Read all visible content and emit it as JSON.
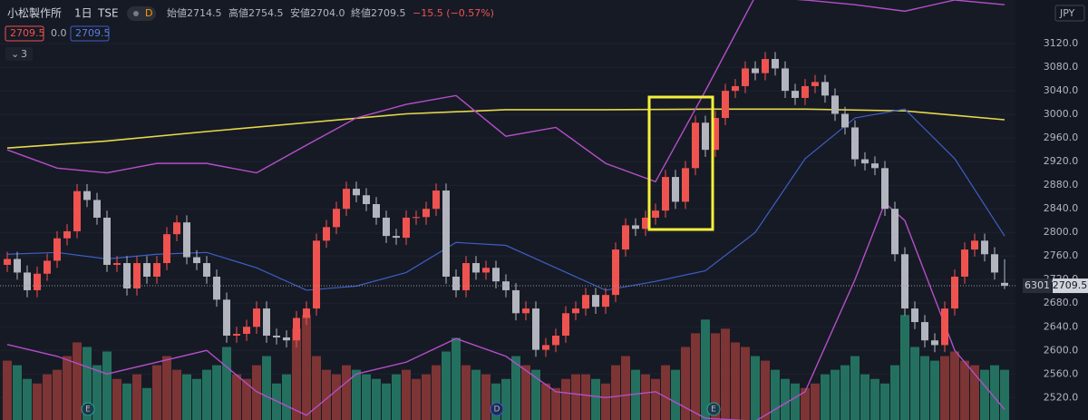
{
  "header": {
    "symbol": "小松製作所",
    "interval": "1日",
    "exchange": "TSE",
    "badge": "D",
    "open": "始値2714.5",
    "high": "高値2754.5",
    "low": "安値2704.0",
    "close": "終値2709.5",
    "change": "−15.5 (−0.57%)",
    "ind_a": "2709.5",
    "ind_b": "0.0",
    "ind_c": "2709.5",
    "collapse": "3",
    "currency": "JPY",
    "symbol_code": "6301",
    "events": [
      "E",
      "D",
      "E"
    ]
  },
  "chart_data": {
    "type": "candlestick",
    "ylim": [
      2482,
      3194
    ],
    "yticks": [
      {
        "value": 2520,
        "label": "2520.0"
      },
      {
        "value": 2560,
        "label": "2560.0"
      },
      {
        "value": 2600,
        "label": "2600.0"
      },
      {
        "value": 2640,
        "label": "2640.0"
      },
      {
        "value": 2680,
        "label": "2680.0"
      },
      {
        "value": 2720,
        "label": "2720.0"
      },
      {
        "value": 2760,
        "label": "2760.0"
      },
      {
        "value": 2800,
        "label": "2800.0"
      },
      {
        "value": 2840,
        "label": "2840.0"
      },
      {
        "value": 2880,
        "label": "2880.0"
      },
      {
        "value": 2920,
        "label": "2920.0"
      },
      {
        "value": 2960,
        "label": "2960.0"
      },
      {
        "value": 3000,
        "label": "3000.0"
      },
      {
        "value": 3040,
        "label": "3040.0"
      },
      {
        "value": 3080,
        "label": "3080.0"
      },
      {
        "value": 3120,
        "label": "3120.0"
      }
    ],
    "up_color": "#ef5350",
    "down_color": "#b2b5be",
    "vol_up_color": "#7d3434",
    "vol_down_color": "#24705f",
    "candles": [
      [
        2745,
        2767,
        2733,
        2755
      ],
      [
        2755,
        2767,
        2720,
        2732
      ],
      [
        2732,
        2744,
        2690,
        2702
      ],
      [
        2702,
        2742,
        2690,
        2730
      ],
      [
        2730,
        2764,
        2718,
        2752
      ],
      [
        2752,
        2802,
        2740,
        2790
      ],
      [
        2790,
        2814,
        2778,
        2802
      ],
      [
        2802,
        2882,
        2790,
        2870
      ],
      [
        2870,
        2882,
        2843,
        2855
      ],
      [
        2855,
        2867,
        2813,
        2825
      ],
      [
        2825,
        2837,
        2733,
        2745
      ],
      [
        2745,
        2760,
        2733,
        2748
      ],
      [
        2748,
        2760,
        2693,
        2705
      ],
      [
        2705,
        2760,
        2693,
        2748
      ],
      [
        2748,
        2760,
        2713,
        2725
      ],
      [
        2725,
        2760,
        2713,
        2748
      ],
      [
        2748,
        2809,
        2736,
        2797
      ],
      [
        2797,
        2829,
        2785,
        2817
      ],
      [
        2817,
        2829,
        2746,
        2758
      ],
      [
        2758,
        2770,
        2736,
        2748
      ],
      [
        2748,
        2760,
        2713,
        2725
      ],
      [
        2725,
        2737,
        2674,
        2686
      ],
      [
        2686,
        2698,
        2613,
        2625
      ],
      [
        2625,
        2640,
        2613,
        2628
      ],
      [
        2628,
        2652,
        2616,
        2640
      ],
      [
        2640,
        2683,
        2628,
        2671
      ],
      [
        2671,
        2683,
        2613,
        2625
      ],
      [
        2625,
        2637,
        2610,
        2622
      ],
      [
        2622,
        2634,
        2605,
        2617
      ],
      [
        2617,
        2667,
        2605,
        2655
      ],
      [
        2655,
        2683,
        2643,
        2671
      ],
      [
        2671,
        2798,
        2659,
        2786
      ],
      [
        2786,
        2821,
        2774,
        2809
      ],
      [
        2809,
        2852,
        2797,
        2840
      ],
      [
        2840,
        2886,
        2828,
        2874
      ],
      [
        2874,
        2886,
        2851,
        2863
      ],
      [
        2863,
        2875,
        2836,
        2848
      ],
      [
        2848,
        2860,
        2813,
        2825
      ],
      [
        2825,
        2837,
        2782,
        2794
      ],
      [
        2794,
        2806,
        2779,
        2791
      ],
      [
        2791,
        2837,
        2779,
        2825
      ],
      [
        2825,
        2837,
        2813,
        2826
      ],
      [
        2826,
        2852,
        2813,
        2840
      ],
      [
        2840,
        2883,
        2828,
        2871
      ],
      [
        2871,
        2883,
        2713,
        2725
      ],
      [
        2725,
        2737,
        2690,
        2702
      ],
      [
        2702,
        2760,
        2690,
        2748
      ],
      [
        2748,
        2760,
        2720,
        2732
      ],
      [
        2732,
        2752,
        2720,
        2740
      ],
      [
        2740,
        2752,
        2705,
        2717
      ],
      [
        2717,
        2729,
        2690,
        2702
      ],
      [
        2702,
        2714,
        2651,
        2663
      ],
      [
        2663,
        2683,
        2651,
        2671
      ],
      [
        2671,
        2683,
        2589,
        2601
      ],
      [
        2601,
        2621,
        2589,
        2609
      ],
      [
        2609,
        2637,
        2597,
        2625
      ],
      [
        2625,
        2675,
        2613,
        2663
      ],
      [
        2663,
        2683,
        2651,
        2671
      ],
      [
        2671,
        2706,
        2659,
        2694
      ],
      [
        2694,
        2706,
        2662,
        2674
      ],
      [
        2674,
        2706,
        2662,
        2694
      ],
      [
        2694,
        2783,
        2682,
        2771
      ],
      [
        2771,
        2824,
        2759,
        2812
      ],
      [
        2812,
        2824,
        2794,
        2806
      ],
      [
        2806,
        2837,
        2794,
        2825
      ],
      [
        2825,
        2849,
        2813,
        2837
      ],
      [
        2837,
        2906,
        2825,
        2894
      ],
      [
        2894,
        2906,
        2840,
        2852
      ],
      [
        2852,
        2921,
        2840,
        2909
      ],
      [
        2909,
        2998,
        2897,
        2986
      ],
      [
        2986,
        2998,
        2928,
        2940
      ],
      [
        2940,
        3006,
        2928,
        2994
      ],
      [
        2994,
        3052,
        2982,
        3040
      ],
      [
        3040,
        3060,
        3028,
        3048
      ],
      [
        3048,
        3090,
        3036,
        3078
      ],
      [
        3078,
        3090,
        3058,
        3070
      ],
      [
        3070,
        3106,
        3058,
        3094
      ],
      [
        3094,
        3106,
        3066,
        3078
      ],
      [
        3078,
        3090,
        3028,
        3040
      ],
      [
        3040,
        3052,
        3016,
        3028
      ],
      [
        3028,
        3060,
        3016,
        3048
      ],
      [
        3048,
        3067,
        3036,
        3055
      ],
      [
        3055,
        3067,
        3020,
        3032
      ],
      [
        3032,
        3044,
        2989,
        3001
      ],
      [
        3001,
        3013,
        2966,
        2978
      ],
      [
        2978,
        2990,
        2912,
        2924
      ],
      [
        2924,
        2936,
        2905,
        2917
      ],
      [
        2917,
        2929,
        2897,
        2909
      ],
      [
        2909,
        2921,
        2828,
        2840
      ],
      [
        2840,
        2852,
        2751,
        2763
      ],
      [
        2763,
        2775,
        2659,
        2671
      ],
      [
        2671,
        2683,
        2636,
        2648
      ],
      [
        2648,
        2660,
        2605,
        2617
      ],
      [
        2617,
        2629,
        2597,
        2609
      ],
      [
        2609,
        2683,
        2597,
        2671
      ],
      [
        2671,
        2737,
        2659,
        2725
      ],
      [
        2725,
        2783,
        2713,
        2771
      ],
      [
        2771,
        2798,
        2759,
        2786
      ],
      [
        2786,
        2798,
        2751,
        2763
      ],
      [
        2763,
        2775,
        2720,
        2732
      ],
      [
        2714.5,
        2754.5,
        2704,
        2709.5
      ]
    ],
    "volume_lim": [
      0,
      460
    ],
    "volume": [
      65,
      60,
      45,
      40,
      50,
      55,
      70,
      85,
      80,
      60,
      75,
      45,
      40,
      50,
      35,
      60,
      70,
      55,
      50,
      45,
      55,
      60,
      80,
      50,
      45,
      60,
      70,
      40,
      50,
      100,
      115,
      70,
      55,
      50,
      60,
      55,
      50,
      45,
      40,
      50,
      55,
      45,
      50,
      60,
      75,
      90,
      60,
      55,
      50,
      40,
      45,
      70,
      60,
      55,
      40,
      35,
      45,
      50,
      50,
      45,
      40,
      60,
      70,
      55,
      50,
      45,
      60,
      55,
      80,
      95,
      110,
      95,
      100,
      85,
      80,
      70,
      65,
      55,
      45,
      40,
      35,
      40,
      50,
      55,
      60,
      70,
      50,
      45,
      40,
      60,
      115,
      80,
      70,
      65,
      70,
      75,
      65,
      60,
      55,
      60,
      55
    ],
    "lines": [
      {
        "color": "#e6d84a",
        "width": 1.6,
        "index": [
          0,
          10,
          20,
          30,
          40,
          50,
          60,
          70,
          80,
          90,
          100
        ],
        "values": [
          2943,
          2955,
          2971,
          2986,
          3001,
          3008,
          3008,
          3009,
          3009,
          3006,
          2991
        ]
      },
      {
        "color": "#3d5fc4",
        "width": 1.2,
        "index": [
          0,
          5,
          10,
          15,
          20,
          25,
          30,
          35,
          40,
          45,
          50,
          55,
          60,
          65,
          70,
          75,
          80,
          85,
          90,
          95,
          100
        ],
        "values": [
          2763,
          2766,
          2755,
          2763,
          2766,
          2740,
          2702,
          2709,
          2732,
          2783,
          2778,
          2740,
          2702,
          2717,
          2735,
          2800,
          2925,
          2994,
          3009,
          2925,
          2794
        ]
      },
      {
        "color": "#b44fc8",
        "width": 1.4,
        "index": [
          0,
          5,
          10,
          15,
          20,
          25,
          30,
          35,
          40,
          45,
          50,
          55,
          60,
          65,
          70,
          75,
          80,
          85,
          90,
          95,
          100
        ],
        "values": [
          2940,
          2909,
          2901,
          2917,
          2917,
          2901,
          2948,
          2994,
          3017,
          3032,
          2963,
          2978,
          2917,
          2886,
          3040,
          3200,
          3194,
          3186,
          3175,
          3194,
          3186
        ]
      },
      {
        "color": "#b44fc8",
        "width": 1.4,
        "index": [
          0,
          5,
          10,
          15,
          20,
          25,
          30,
          35,
          40,
          45,
          50,
          55,
          60,
          65,
          70,
          75,
          80,
          85,
          88,
          90,
          95,
          100
        ],
        "values": [
          2610,
          2590,
          2560,
          2580,
          2600,
          2530,
          2490,
          2560,
          2580,
          2620,
          2590,
          2530,
          2520,
          2530,
          2485,
          2480,
          2530,
          2720,
          2850,
          2820,
          2600,
          2500
        ]
      }
    ]
  }
}
